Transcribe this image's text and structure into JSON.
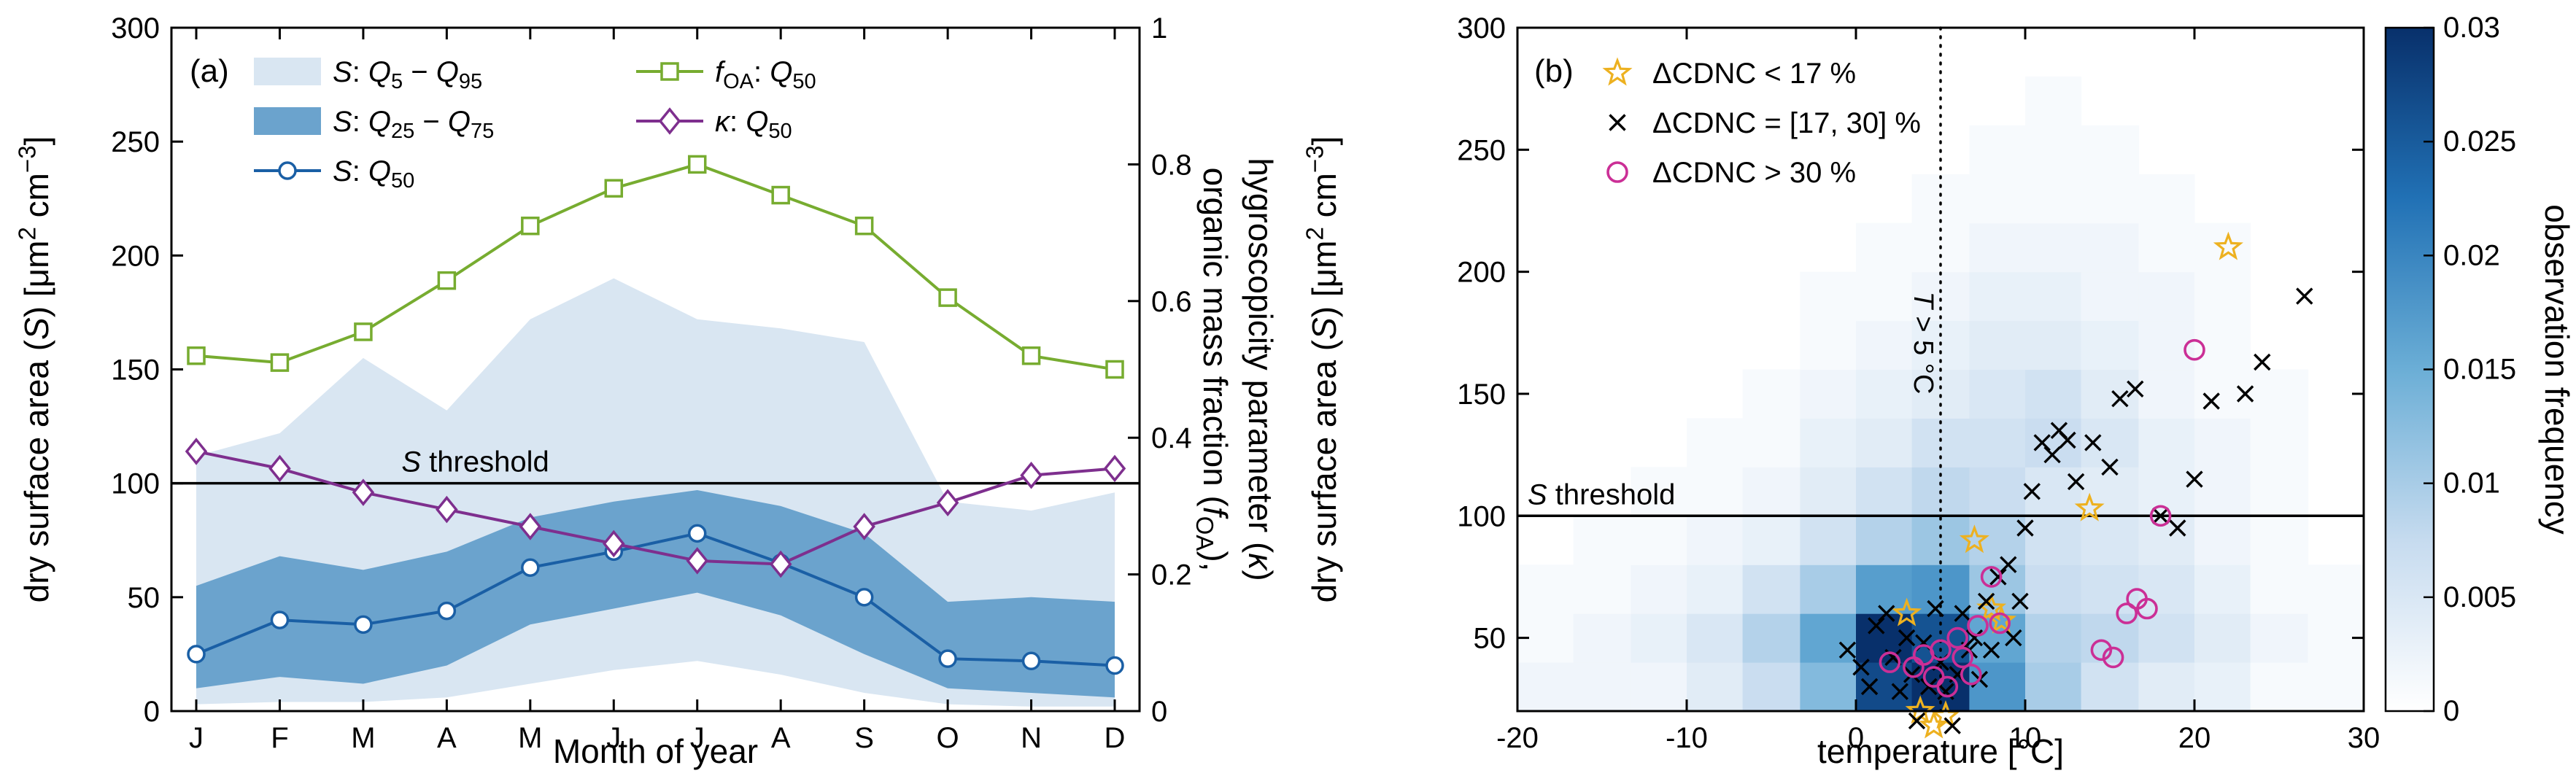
{
  "figure": {
    "background": "#ffffff"
  },
  "colors": {
    "band_outer": "#d9e6f2",
    "band_inner": "#6ba3cd",
    "s_line": "#1a5fa5",
    "foa_line": "#77ac30",
    "kappa_line": "#7e2f8e",
    "star": "#edb120",
    "cross": "#000000",
    "circle": "#cb2f96",
    "threshold": "#000000",
    "heat_stops": [
      "#ffffff",
      "#c6dbef",
      "#6baed6",
      "#2171b5",
      "#08306b"
    ]
  },
  "chart_data": [
    {
      "id": "a",
      "type": "line",
      "panel_label": "(a)",
      "xlabel": "Month of year",
      "ylabel_left": "dry surface area (*S*) [μm^{2} cm^{−3}]",
      "ylabel_right_line1": "organic mass fraction (*f*_{OA}),",
      "ylabel_right_line2": "hygroscopicity parameter (*κ*)",
      "x_categories": [
        "J",
        "F",
        "M",
        "A",
        "M",
        "J",
        "J",
        "A",
        "S",
        "O",
        "N",
        "D"
      ],
      "ylim_left": [
        0,
        300
      ],
      "yticks_left": [
        0,
        50,
        100,
        150,
        200,
        250,
        300
      ],
      "ytick_labels_left": [
        "0",
        "50",
        "100",
        "150",
        "200",
        "250",
        "300"
      ],
      "ylim_right": [
        0,
        1
      ],
      "yticks_right": [
        0,
        0.2,
        0.4,
        0.6,
        0.8,
        1
      ],
      "ytick_labels_right": [
        "0",
        "0.2",
        "0.4",
        "0.6",
        "0.8",
        "1"
      ],
      "threshold": {
        "value": 100,
        "label": "*S* threshold"
      },
      "series": [
        {
          "name": "*S*: *Q*_{5} − *Q*_{95}",
          "kind": "band",
          "axis": "left",
          "lower": [
            3,
            4,
            4,
            6,
            12,
            18,
            22,
            16,
            8,
            3,
            2,
            2
          ],
          "upper": [
            112,
            122,
            155,
            132,
            172,
            190,
            172,
            168,
            162,
            92,
            88,
            96
          ]
        },
        {
          "name": "*S*: *Q*_{25} − *Q*_{75}",
          "kind": "band",
          "axis": "left",
          "lower": [
            10,
            15,
            12,
            20,
            38,
            45,
            52,
            42,
            25,
            10,
            8,
            6
          ],
          "upper": [
            55,
            68,
            62,
            70,
            85,
            92,
            97,
            90,
            78,
            48,
            50,
            48
          ]
        },
        {
          "name": "*S*: *Q*_{50}",
          "kind": "line",
          "marker": "circle",
          "axis": "left",
          "values": [
            25,
            40,
            38,
            44,
            63,
            70,
            78,
            65,
            50,
            23,
            22,
            20
          ]
        },
        {
          "name": "*f*_{OA}: *Q*_{50}",
          "kind": "line",
          "marker": "square",
          "axis": "right",
          "values": [
            0.52,
            0.51,
            0.555,
            0.63,
            0.71,
            0.765,
            0.8,
            0.755,
            0.71,
            0.605,
            0.52,
            0.5
          ]
        },
        {
          "name": "*κ*: *Q*_{50}",
          "kind": "line",
          "marker": "diamond",
          "axis": "right",
          "values": [
            0.38,
            0.355,
            0.32,
            0.295,
            0.27,
            0.245,
            0.22,
            0.215,
            0.27,
            0.305,
            0.345,
            0.355
          ]
        }
      ]
    },
    {
      "id": "b",
      "type": "heatmap",
      "panel_label": "(b)",
      "xlabel": "temperature [°C]",
      "ylabel": "dry surface area (*S*) [μm^{2} cm^{−3}]",
      "xlim": [
        -20,
        30
      ],
      "xticks": [
        -20,
        -10,
        0,
        10,
        20,
        30
      ],
      "xtick_labels": [
        "-20",
        "-10",
        "0",
        "10",
        "20",
        "30"
      ],
      "ylim": [
        20,
        300
      ],
      "yticks": [
        50,
        100,
        150,
        200,
        250,
        300
      ],
      "ytick_labels": [
        "50",
        "100",
        "150",
        "200",
        "250",
        "300"
      ],
      "threshold": {
        "value": 100,
        "label": "*S* threshold"
      },
      "vline": {
        "value": 5,
        "label": "*T* > 5 °C"
      },
      "heatmap": {
        "t_edges": [
          -20,
          -16.7,
          -13.3,
          -10,
          -6.7,
          -3.3,
          0,
          3.3,
          6.7,
          10,
          13.3,
          16.7,
          20,
          23.3,
          26.7,
          30
        ],
        "s_edges": [
          20,
          40,
          60,
          80,
          100,
          120,
          140,
          160,
          180,
          200,
          220,
          240,
          260,
          280,
          300
        ],
        "values_rows_bottom_to_top": [
          [
            0.002,
            0.002,
            0.002,
            0.004,
            0.007,
            0.013,
            0.027,
            0.03,
            0.018,
            0.01,
            0.006,
            0.004,
            0.003,
            0.001,
            0.001
          ],
          [
            0.001,
            0.002,
            0.003,
            0.005,
            0.009,
            0.016,
            0.03,
            0.026,
            0.016,
            0.009,
            0.008,
            0.006,
            0.004,
            0.002,
            0.001
          ],
          [
            0.001,
            0.001,
            0.002,
            0.003,
            0.006,
            0.01,
            0.017,
            0.018,
            0.011,
            0.007,
            0.006,
            0.005,
            0.003,
            0.001,
            0.001
          ],
          [
            0,
            0.001,
            0.001,
            0.002,
            0.003,
            0.006,
            0.009,
            0.011,
            0.009,
            0.006,
            0.005,
            0.004,
            0.002,
            0.001,
            0
          ],
          [
            0,
            0,
            0.001,
            0.001,
            0.002,
            0.004,
            0.006,
            0.008,
            0.007,
            0.005,
            0.004,
            0.003,
            0.002,
            0.001,
            0
          ],
          [
            0,
            0,
            0,
            0.001,
            0.001,
            0.003,
            0.004,
            0.006,
            0.006,
            0.007,
            0.005,
            0.003,
            0.002,
            0.001,
            0
          ],
          [
            0,
            0,
            0,
            0,
            0.001,
            0.002,
            0.003,
            0.004,
            0.005,
            0.006,
            0.004,
            0.002,
            0.001,
            0.001,
            0
          ],
          [
            0,
            0,
            0,
            0,
            0,
            0.001,
            0.002,
            0.003,
            0.004,
            0.004,
            0.003,
            0.002,
            0.001,
            0,
            0
          ],
          [
            0,
            0,
            0,
            0,
            0,
            0.001,
            0.001,
            0.002,
            0.003,
            0.003,
            0.002,
            0.002,
            0.001,
            0,
            0
          ],
          [
            0,
            0,
            0,
            0,
            0,
            0,
            0.001,
            0.001,
            0.002,
            0.002,
            0.002,
            0.001,
            0.001,
            0,
            0
          ],
          [
            0,
            0,
            0,
            0,
            0,
            0,
            0,
            0.001,
            0.001,
            0.001,
            0.001,
            0.001,
            0,
            0,
            0
          ],
          [
            0,
            0,
            0,
            0,
            0,
            0,
            0,
            0,
            0.001,
            0.001,
            0.001,
            0,
            0,
            0,
            0
          ],
          [
            0,
            0,
            0,
            0,
            0,
            0,
            0,
            0,
            0,
            0.001,
            0,
            0,
            0,
            0,
            0
          ],
          [
            0,
            0,
            0,
            0,
            0,
            0,
            0,
            0,
            0,
            0,
            0,
            0,
            0,
            0,
            0
          ]
        ],
        "colorbar": {
          "label": "observation frequency",
          "max": 0.03,
          "ticks": [
            0,
            0.005,
            0.01,
            0.015,
            0.02,
            0.025,
            0.03
          ],
          "tick_labels": [
            "0",
            "0.005",
            "0.01",
            "0.015",
            "0.02",
            "0.025",
            "0.03"
          ]
        }
      },
      "scatter": [
        {
          "name": "ΔCDNC < 17 %",
          "marker": "star",
          "points": [
            [
              3,
              60
            ],
            [
              3.8,
              20
            ],
            [
              4.6,
              14
            ],
            [
              5.3,
              18
            ],
            [
              7,
              90
            ],
            [
              8,
              62
            ],
            [
              8.6,
              57
            ],
            [
              13.8,
              103
            ],
            [
              22,
              210
            ]
          ]
        },
        {
          "name": "ΔCDNC = [17, 30] %",
          "marker": "x",
          "points": [
            [
              -0.5,
              45
            ],
            [
              0.3,
              38
            ],
            [
              0.8,
              30
            ],
            [
              1.2,
              55
            ],
            [
              1.8,
              60
            ],
            [
              2.2,
              42
            ],
            [
              2.6,
              28
            ],
            [
              3,
              50
            ],
            [
              3.3,
              35
            ],
            [
              3.6,
              16
            ],
            [
              4,
              48
            ],
            [
              4.3,
              30
            ],
            [
              4.7,
              62
            ],
            [
              5,
              40
            ],
            [
              5.3,
              28
            ],
            [
              5.7,
              14
            ],
            [
              6,
              35
            ],
            [
              6.3,
              60
            ],
            [
              6.7,
              45
            ],
            [
              7,
              50
            ],
            [
              7.3,
              33
            ],
            [
              7.7,
              65
            ],
            [
              8,
              45
            ],
            [
              8.4,
              75
            ],
            [
              9,
              80
            ],
            [
              9.3,
              50
            ],
            [
              9.7,
              65
            ],
            [
              10,
              95
            ],
            [
              10.4,
              110
            ],
            [
              11,
              130
            ],
            [
              11.6,
              125
            ],
            [
              12,
              135
            ],
            [
              12.5,
              131
            ],
            [
              13,
              114
            ],
            [
              14,
              130
            ],
            [
              15,
              120
            ],
            [
              15.6,
              148
            ],
            [
              16.5,
              152
            ],
            [
              18,
              100
            ],
            [
              19,
              95
            ],
            [
              20,
              115
            ],
            [
              21,
              147
            ],
            [
              23,
              150
            ],
            [
              24,
              163
            ],
            [
              26.5,
              190
            ]
          ]
        },
        {
          "name": "ΔCDNC > 30 %",
          "marker": "circle",
          "points": [
            [
              2,
              40
            ],
            [
              3.4,
              38
            ],
            [
              4,
              43
            ],
            [
              4.6,
              34
            ],
            [
              5,
              45
            ],
            [
              5.4,
              30
            ],
            [
              6,
              50
            ],
            [
              6.3,
              42
            ],
            [
              6.8,
              35
            ],
            [
              7.2,
              55
            ],
            [
              8,
              75
            ],
            [
              8.5,
              56
            ],
            [
              14.5,
              45
            ],
            [
              15.2,
              42
            ],
            [
              16,
              60
            ],
            [
              16.6,
              66
            ],
            [
              17.2,
              62
            ],
            [
              18,
              100
            ],
            [
              20,
              168
            ]
          ]
        }
      ]
    }
  ]
}
